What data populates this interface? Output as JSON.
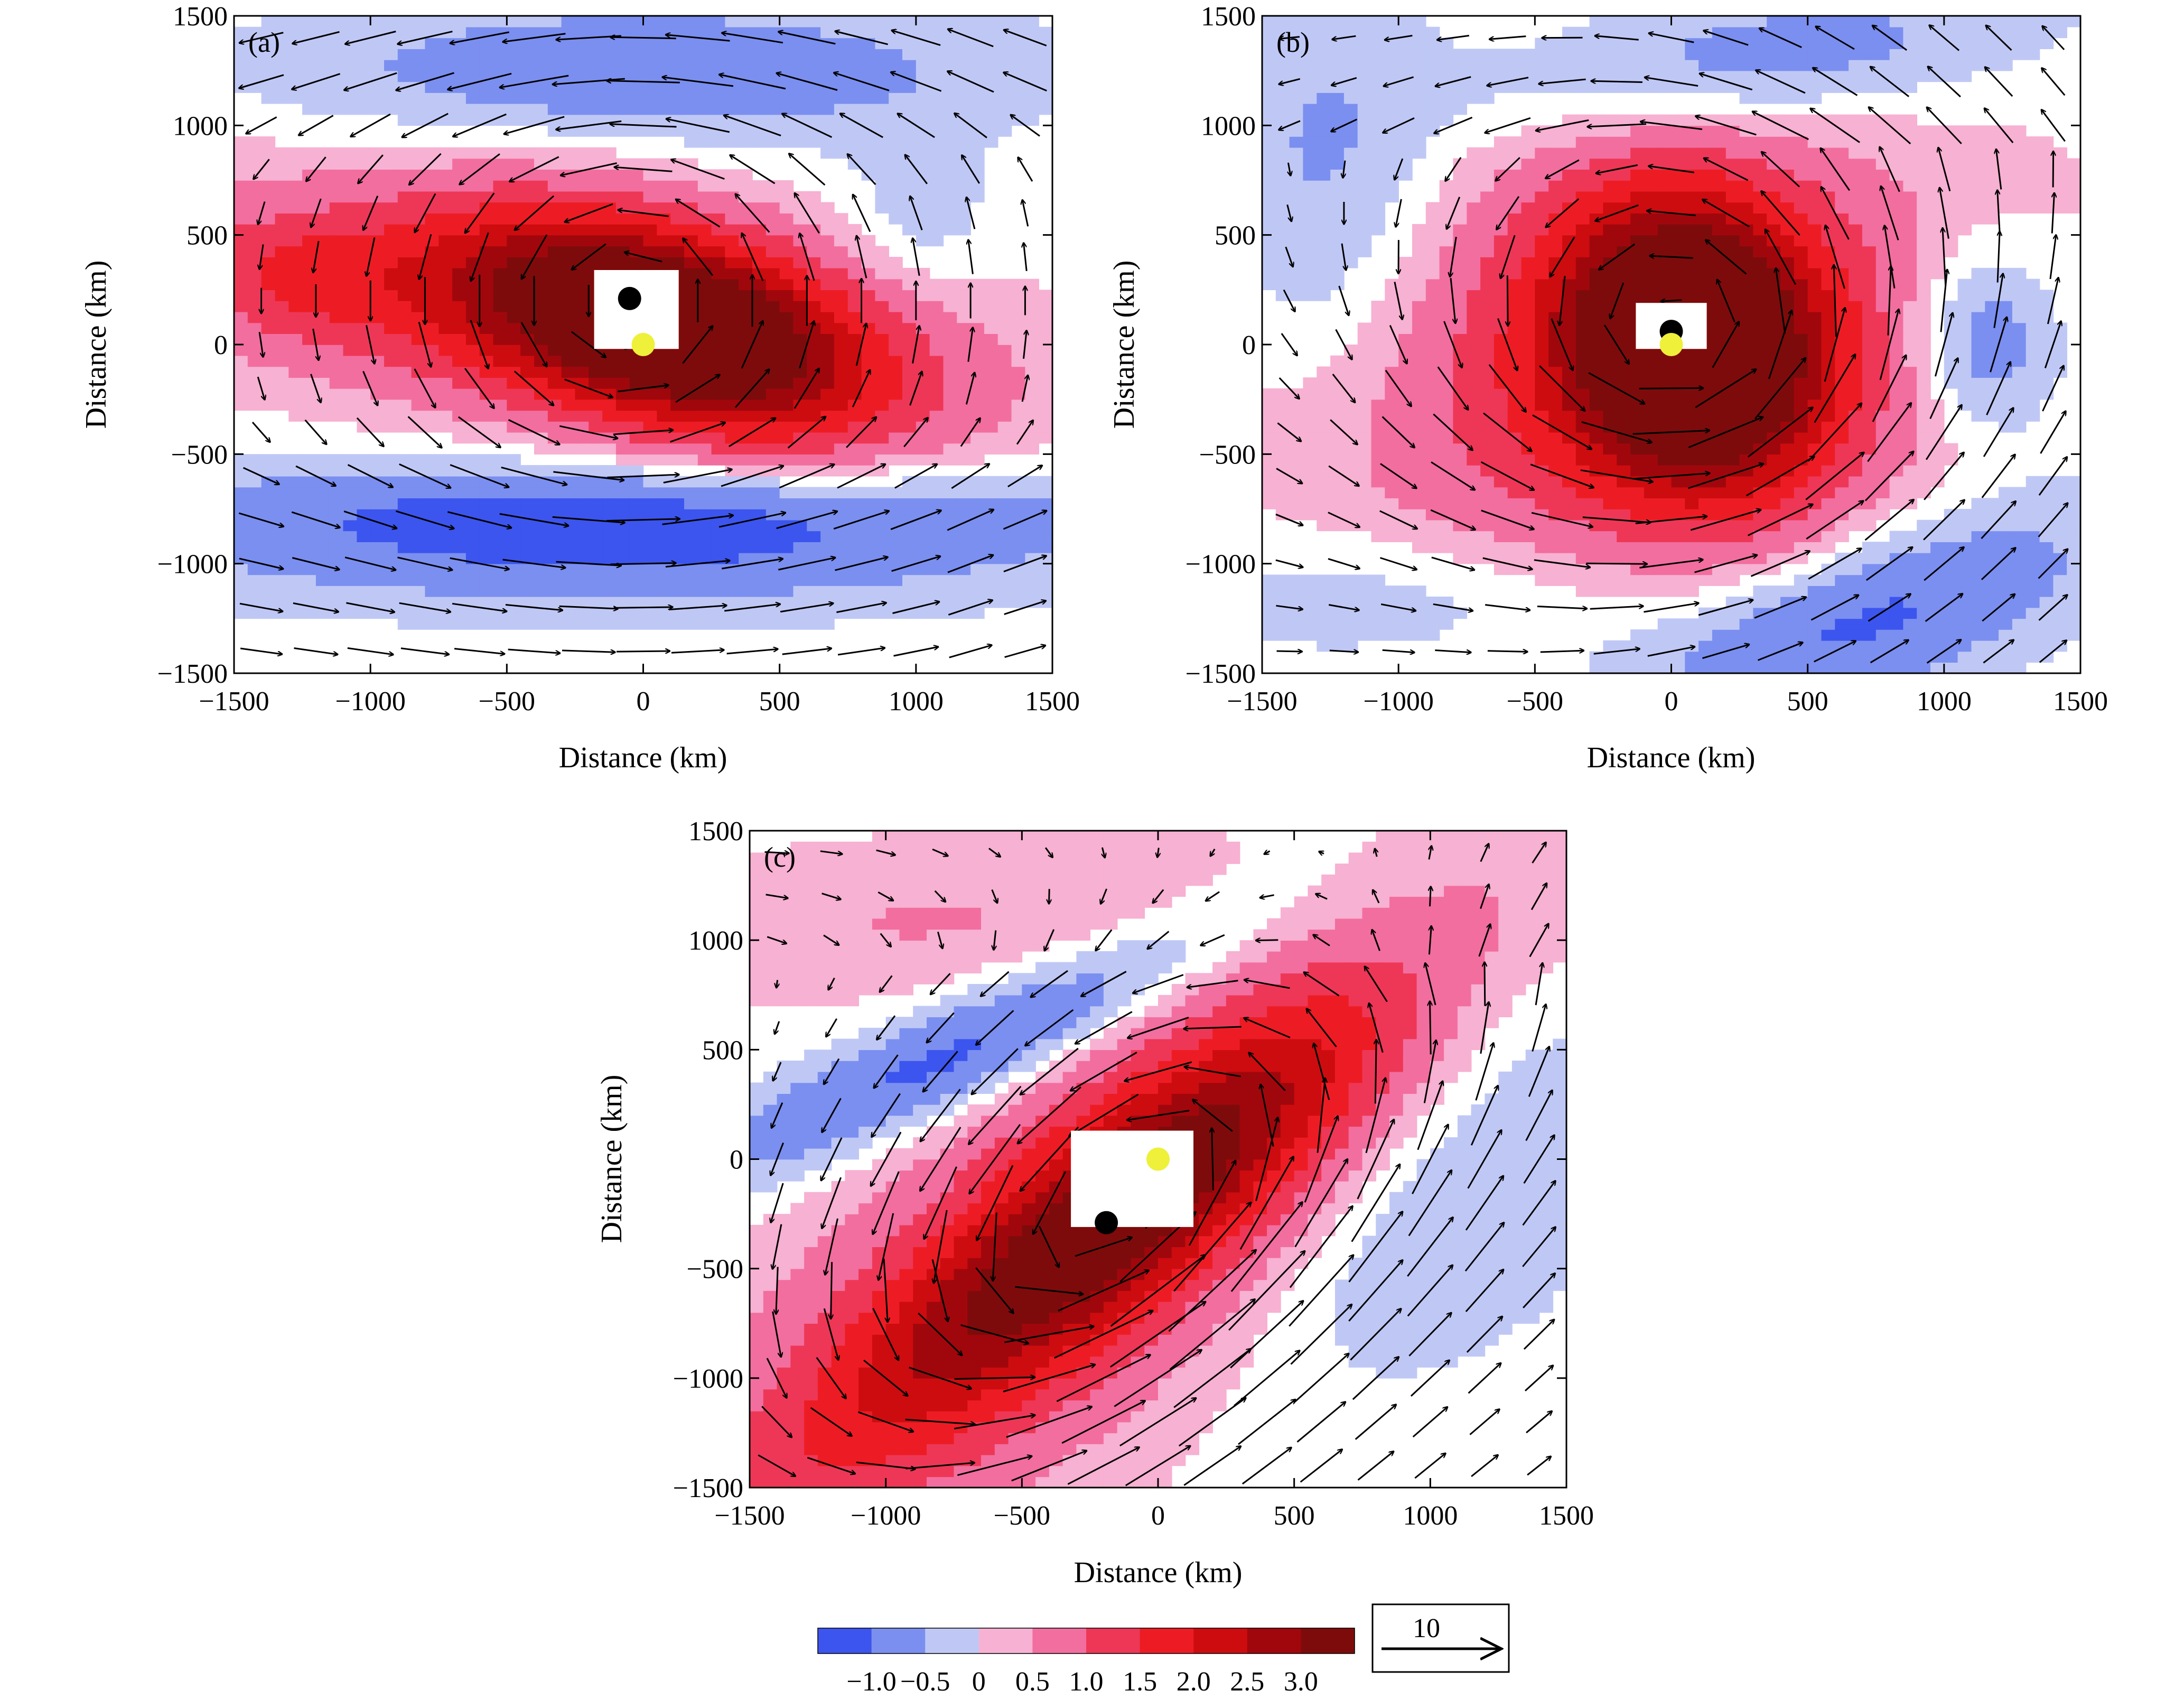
{
  "chart_data": [
    {
      "type": "contour-vector",
      "panel_label": "(a)",
      "xlabel": "Distance (km)",
      "ylabel": "Distance (km)",
      "xlim": [
        -1500,
        1500
      ],
      "ylim": [
        -1500,
        1500
      ],
      "xticks": [
        -1500,
        -1000,
        -500,
        0,
        500,
        1000,
        1500
      ],
      "yticks": [
        -1500,
        -1000,
        -500,
        0,
        500,
        1000,
        1500
      ],
      "xtick_labels": [
        "−1500",
        "−1000",
        "−500",
        "0",
        "500",
        "1000",
        "1500"
      ],
      "ytick_labels": [
        "−1500",
        "−1000",
        "−500",
        "0",
        "500",
        "1000",
        "1500"
      ],
      "center_black": [
        -50,
        210
      ],
      "center_yellow": [
        0,
        0
      ],
      "field": {
        "peak_center": [
          100,
          80
        ],
        "peak_value": 3.0,
        "ellipse_semi_axes": [
          650,
          330
        ],
        "ellipse_angle_deg": -25,
        "secondary_max": {
          "center": [
            -1200,
            300
          ],
          "value": 1.6
        },
        "negative_bands": [
          {
            "center": [
              0,
              1250
            ],
            "value": -0.3
          },
          {
            "center": [
              -100,
              -900
            ],
            "value": -0.6
          },
          {
            "center": [
              0,
              -950
            ],
            "value": -0.4
          }
        ]
      },
      "wind": {
        "vortex_center": [
          -50,
          200
        ],
        "vortex_radius": 500,
        "background": "westerly in south, easterly in north"
      }
    },
    {
      "type": "contour-vector",
      "panel_label": "(b)",
      "xlabel": "Distance (km)",
      "ylabel": "Distance (km)",
      "xlim": [
        -1500,
        1500
      ],
      "ylim": [
        -1500,
        1500
      ],
      "xticks": [
        -1500,
        -1000,
        -500,
        0,
        500,
        1000,
        1500
      ],
      "yticks": [
        -1500,
        -1000,
        -500,
        0,
        500,
        1000,
        1500
      ],
      "xtick_labels": [
        "−1500",
        "−1000",
        "−500",
        "0",
        "500",
        "1000",
        "1500"
      ],
      "ytick_labels": [
        "−1500",
        "−1000",
        "−500",
        "0",
        "500",
        "1000",
        "1500"
      ],
      "center_black": [
        0,
        60
      ],
      "center_yellow": [
        0,
        0
      ],
      "field": {
        "peak_center": [
          80,
          0
        ],
        "peak_value": 3.5,
        "ellipse_semi_axes": [
          450,
          600
        ],
        "ellipse_angle_deg": 15,
        "negative_bands": [
          {
            "center": [
              1200,
              0
            ],
            "value": -0.6
          },
          {
            "center": [
              800,
              -1200
            ],
            "value": -0.7
          },
          {
            "center": [
              200,
              1300
            ],
            "value": -0.5
          }
        ]
      },
      "wind": {
        "vortex_center": [
          50,
          50
        ],
        "vortex_radius": 600,
        "background": "cyclonic circulation with southwesterly flow"
      }
    },
    {
      "type": "contour-vector",
      "panel_label": "(c)",
      "xlabel": "Distance (km)",
      "ylabel": "Distance (km)",
      "xlim": [
        -1500,
        1500
      ],
      "ylim": [
        -1500,
        1500
      ],
      "xticks": [
        -1500,
        -1000,
        -500,
        0,
        500,
        1000,
        1500
      ],
      "yticks": [
        -1500,
        -1000,
        -500,
        0,
        500,
        1000,
        1500
      ],
      "xtick_labels": [
        "−1500",
        "−1000",
        "−500",
        "0",
        "500",
        "1000",
        "1500"
      ],
      "ytick_labels": [
        "−1500",
        "−1000",
        "−500",
        "0",
        "500",
        "1000",
        "1500"
      ],
      "center_black": [
        -190,
        -290
      ],
      "center_yellow": [
        0,
        0
      ],
      "field": {
        "band_axis_angle_deg": 45,
        "band_center": [
          -150,
          -200
        ],
        "peak_value": 2.5,
        "band_semi_axes": [
          1300,
          280
        ],
        "negative_bands": [
          {
            "center": [
              -700,
              500
            ],
            "value": -0.7
          },
          {
            "center": [
              700,
              -300
            ],
            "value": -0.3
          }
        ]
      },
      "wind": {
        "vortex_center": [
          -150,
          -250
        ],
        "vortex_radius": 700,
        "background": "elongated cyclonic circulation along SW-NE axis"
      }
    }
  ],
  "colorbar": {
    "levels": [
      -1.0,
      -0.5,
      0,
      0.5,
      1.0,
      1.5,
      2.0,
      2.5,
      3.0
    ],
    "level_labels": [
      "−1.0",
      "−0.5",
      "0",
      "0.5",
      "1.0",
      "1.5",
      "2.0",
      "2.5",
      "3.0"
    ],
    "colors": [
      "#3c55ee",
      "#7b8ff0",
      "#bfc8f5",
      "#f7b1d2",
      "#f26e9f",
      "#ee3756",
      "#ed1c24",
      "#cd0c10",
      "#a0070c",
      "#7e0b0b"
    ],
    "zero_fill": "#ffffff"
  },
  "reference_vector": {
    "label": "10",
    "magnitude": 10
  }
}
